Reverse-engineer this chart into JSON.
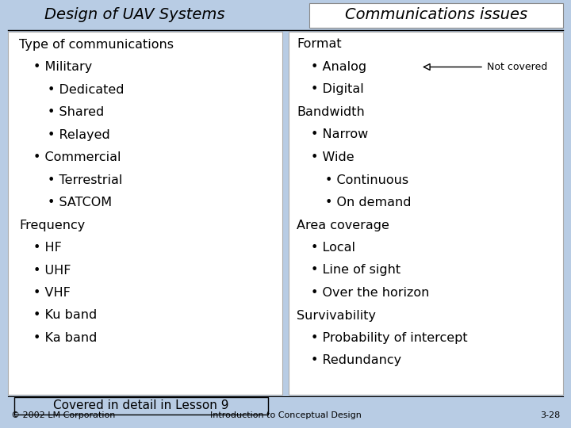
{
  "bg_color": "#b8cce4",
  "panel_color": "#ffffff",
  "title_left": "Design of UAV Systems",
  "title_right": "Communications issues",
  "left_content": [
    {
      "text": "Type of communications",
      "indent": 0,
      "bullet": false
    },
    {
      "text": "Military",
      "indent": 1,
      "bullet": true
    },
    {
      "text": "Dedicated",
      "indent": 2,
      "bullet": true
    },
    {
      "text": "Shared",
      "indent": 2,
      "bullet": true
    },
    {
      "text": "Relayed",
      "indent": 2,
      "bullet": true
    },
    {
      "text": "Commercial",
      "indent": 1,
      "bullet": true
    },
    {
      "text": "Terrestrial",
      "indent": 2,
      "bullet": true
    },
    {
      "text": "SATCOM",
      "indent": 2,
      "bullet": true
    },
    {
      "text": "Frequency",
      "indent": 0,
      "bullet": false
    },
    {
      "text": "HF",
      "indent": 1,
      "bullet": true
    },
    {
      "text": "UHF",
      "indent": 1,
      "bullet": true
    },
    {
      "text": "VHF",
      "indent": 1,
      "bullet": true
    },
    {
      "text": "Ku band",
      "indent": 1,
      "bullet": true
    },
    {
      "text": "Ka band",
      "indent": 1,
      "bullet": true
    }
  ],
  "left_note": "Covered in detail in Lesson 9",
  "right_content": [
    {
      "text": "Format",
      "indent": 0,
      "bullet": false,
      "arrow": false
    },
    {
      "text": "Analog",
      "indent": 1,
      "bullet": true,
      "arrow": true
    },
    {
      "text": "Digital",
      "indent": 1,
      "bullet": true,
      "arrow": false
    },
    {
      "text": "Bandwidth",
      "indent": 0,
      "bullet": false,
      "arrow": false
    },
    {
      "text": "Narrow",
      "indent": 1,
      "bullet": true,
      "arrow": false
    },
    {
      "text": "Wide",
      "indent": 1,
      "bullet": true,
      "arrow": false
    },
    {
      "text": "Continuous",
      "indent": 2,
      "bullet": true,
      "arrow": false
    },
    {
      "text": "On demand",
      "indent": 2,
      "bullet": true,
      "arrow": false
    },
    {
      "text": "Area coverage",
      "indent": 0,
      "bullet": false,
      "arrow": false
    },
    {
      "text": "Local",
      "indent": 1,
      "bullet": true,
      "arrow": false
    },
    {
      "text": "Line of sight",
      "indent": 1,
      "bullet": true,
      "arrow": false
    },
    {
      "text": "Over the horizon",
      "indent": 1,
      "bullet": true,
      "arrow": false
    },
    {
      "text": "Survivability",
      "indent": 0,
      "bullet": false,
      "arrow": false
    },
    {
      "text": "Probability of intercept",
      "indent": 1,
      "bullet": true,
      "arrow": false
    },
    {
      "text": "Redundancy",
      "indent": 1,
      "bullet": true,
      "arrow": false
    }
  ],
  "arrow_label": "Not covered",
  "footer_left": "© 2002 LM Corporation",
  "footer_center": "Introduction to Conceptual Design",
  "footer_right": "3-28",
  "title_fontsize": 14,
  "content_fontsize": 11.5,
  "footer_fontsize": 8,
  "note_fontsize": 11
}
